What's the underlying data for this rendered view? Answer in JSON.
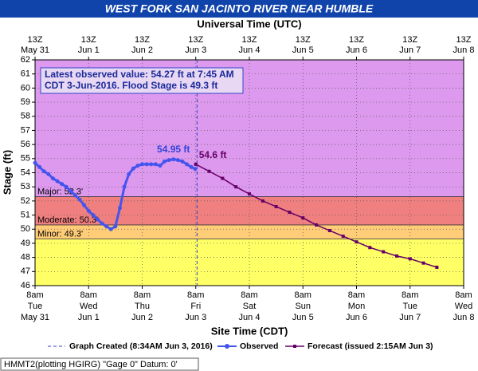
{
  "chart_data": {
    "type": "line",
    "title": "WEST FORK SAN JACINTO RIVER NEAR HUMBLE",
    "x2_axis_label": "Universal Time (UTC)",
    "y_axis_label": "Stage (ft)",
    "x_axis_label": "Site Time (CDT)",
    "xlim": [
      0,
      192
    ],
    "ylim": [
      46,
      62
    ],
    "yticks": [
      46,
      47,
      48,
      49,
      50,
      51,
      52,
      53,
      54,
      55,
      56,
      57,
      58,
      59,
      60,
      61,
      62
    ],
    "xticks": [
      {
        "value": 0,
        "label": "8am"
      },
      {
        "value": 24,
        "label": "8am"
      },
      {
        "value": 48,
        "label": "8am"
      },
      {
        "value": 72,
        "label": "8am"
      },
      {
        "value": 96,
        "label": "8am"
      },
      {
        "value": 120,
        "label": "8am"
      },
      {
        "value": 144,
        "label": "8am"
      },
      {
        "value": 168,
        "label": "8am"
      },
      {
        "value": 192,
        "label": "8am"
      }
    ],
    "x_tick_days": [
      "Tue",
      "Wed",
      "Thu",
      "Fri",
      "Sat",
      "Sun",
      "Mon",
      "Tue",
      "Wed"
    ],
    "x_tick_dates": [
      "May 31",
      "Jun 1",
      "Jun 2",
      "Jun 3",
      "Jun 4",
      "Jun 5",
      "Jun 6",
      "Jun 7",
      "Jun 8"
    ],
    "x2ticks": [
      {
        "value": 0,
        "label": "13Z"
      },
      {
        "value": 24,
        "label": "13Z"
      },
      {
        "value": 48,
        "label": "13Z"
      },
      {
        "value": 72,
        "label": "13Z"
      },
      {
        "value": 96,
        "label": "13Z"
      },
      {
        "value": 120,
        "label": "13Z"
      },
      {
        "value": 144,
        "label": "13Z"
      },
      {
        "value": 168,
        "label": "13Z"
      },
      {
        "value": 192,
        "label": "13Z"
      }
    ],
    "x2_tick_dates": [
      "May 31",
      "Jun 1",
      "Jun 2",
      "Jun 3",
      "Jun 4",
      "Jun 5",
      "Jun 6",
      "Jun 7",
      "Jun 8"
    ],
    "grid": true,
    "base_color": "#ffff66",
    "flood_levels": [
      {
        "label": "Minor: 49.3'",
        "value": 49.3,
        "color": "#ffcc77"
      },
      {
        "label": "Moderate: 50.3'",
        "value": 50.3,
        "color": "#f08080"
      },
      {
        "label": "Major: 52.3'",
        "value": 52.3,
        "color": "#dd99ee"
      }
    ],
    "info_box": [
      "Latest observed value: 54.27 ft at 7:45 AM",
      "CDT 3-Jun-2016. Flood Stage is 49.3 ft"
    ],
    "created_line": {
      "x": 72.57,
      "label": "Graph Created (8:34AM Jun 3, 2016)",
      "color": "#3344cc"
    },
    "series": [
      {
        "name": "Observed",
        "color": "#4455ee",
        "x": [
          0,
          2,
          4,
          6,
          8,
          10,
          12,
          14,
          16,
          18,
          20,
          22,
          24,
          26,
          28,
          30,
          32,
          34,
          36,
          38,
          40,
          42,
          44,
          46,
          48,
          50,
          52,
          54,
          56,
          58,
          60,
          62,
          64,
          66,
          68,
          70,
          71.75
        ],
        "values": [
          54.7,
          54.4,
          54.1,
          53.9,
          53.6,
          53.4,
          53.2,
          53.0,
          52.7,
          52.4,
          52.1,
          51.7,
          51.3,
          51.0,
          50.7,
          50.4,
          50.2,
          50.0,
          50.2,
          51.5,
          53.0,
          53.9,
          54.3,
          54.5,
          54.6,
          54.6,
          54.6,
          54.6,
          54.5,
          54.8,
          54.9,
          54.95,
          54.9,
          54.8,
          54.6,
          54.4,
          54.27
        ],
        "peak_label": "54.95 ft"
      },
      {
        "name": "Forecast (issued 2:15AM Jun 3)",
        "color": "#660066",
        "x": [
          72,
          78,
          84,
          90,
          96,
          102,
          108,
          114,
          120,
          126,
          132,
          138,
          144,
          150,
          156,
          162,
          168,
          174,
          180
        ],
        "values": [
          54.6,
          54.1,
          53.6,
          53.0,
          52.5,
          52.0,
          51.6,
          51.2,
          50.8,
          50.3,
          49.9,
          49.5,
          49.1,
          48.7,
          48.4,
          48.1,
          47.9,
          47.6,
          47.3
        ],
        "start_label": "54.6 ft"
      }
    ],
    "footer": "HMMT2(plotting HGIRG) \"Gage 0\" Datum: 0'"
  }
}
